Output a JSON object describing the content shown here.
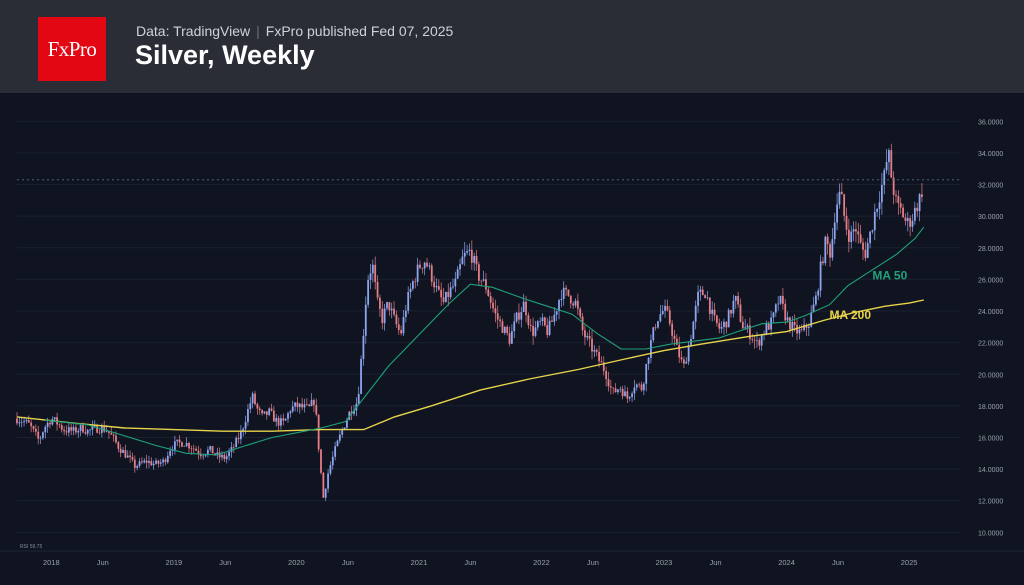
{
  "header": {
    "logo_text": "FxPro",
    "source": "Data: TradingView",
    "published": "FxPro published Fed 07, 2025",
    "title": "Silver, Weekly"
  },
  "colors": {
    "background": "#0f1420",
    "header": "#2a2d36",
    "logo": "#e30613",
    "up_candle": "#8ea5f0",
    "down_candle": "#e57e86",
    "ma50": "#1fa27a",
    "ma200": "#e8d44a"
  },
  "chart_data": {
    "type": "candlestick",
    "title": "Silver, Weekly",
    "y_ticks": [
      "10.0000",
      "12.0000",
      "14.0000",
      "16.0000",
      "18.0000",
      "20.0000",
      "22.0000",
      "24.0000",
      "26.0000",
      "28.0000",
      "30.0000",
      "32.0000",
      "34.0000",
      "36.0000"
    ],
    "ylim": [
      9.2,
      36.4
    ],
    "x_ticks": [
      {
        "label": "2018",
        "t": 2018.0
      },
      {
        "label": "Jun",
        "t": 2018.42
      },
      {
        "label": "2019",
        "t": 2019.0
      },
      {
        "label": "Jun",
        "t": 2019.42
      },
      {
        "label": "2020",
        "t": 2020.0
      },
      {
        "label": "Jun",
        "t": 2020.42
      },
      {
        "label": "2021",
        "t": 2021.0
      },
      {
        "label": "Jun",
        "t": 2021.42
      },
      {
        "label": "2022",
        "t": 2022.0
      },
      {
        "label": "Jun",
        "t": 2022.42
      },
      {
        "label": "2023",
        "t": 2023.0
      },
      {
        "label": "Jun",
        "t": 2023.42
      },
      {
        "label": "2024",
        "t": 2024.0
      },
      {
        "label": "Jun",
        "t": 2024.42
      },
      {
        "label": "2025",
        "t": 2025.0
      }
    ],
    "xlim": [
      2017.72,
      2025.35
    ],
    "last_price": 32.3,
    "indicator_label": "RSI 59.75",
    "price_path": [
      [
        2017.72,
        17.2
      ],
      [
        2017.78,
        17.0
      ],
      [
        2017.82,
        16.8
      ],
      [
        2017.86,
        16.3
      ],
      [
        2017.9,
        15.8
      ],
      [
        2017.94,
        16.6
      ],
      [
        2018.0,
        17.2
      ],
      [
        2018.05,
        16.9
      ],
      [
        2018.1,
        16.5
      ],
      [
        2018.18,
        16.4
      ],
      [
        2018.25,
        16.6
      ],
      [
        2018.3,
        16.4
      ],
      [
        2018.38,
        16.6
      ],
      [
        2018.45,
        16.5
      ],
      [
        2018.5,
        16.0
      ],
      [
        2018.55,
        15.4
      ],
      [
        2018.62,
        14.8
      ],
      [
        2018.68,
        14.2
      ],
      [
        2018.72,
        14.3
      ],
      [
        2018.78,
        14.5
      ],
      [
        2018.85,
        14.3
      ],
      [
        2018.92,
        14.5
      ],
      [
        2018.97,
        15.3
      ],
      [
        2019.02,
        15.6
      ],
      [
        2019.08,
        15.7
      ],
      [
        2019.15,
        15.4
      ],
      [
        2019.22,
        15.0
      ],
      [
        2019.3,
        15.2
      ],
      [
        2019.36,
        14.8
      ],
      [
        2019.42,
        14.7
      ],
      [
        2019.48,
        15.3
      ],
      [
        2019.55,
        16.3
      ],
      [
        2019.6,
        17.6
      ],
      [
        2019.64,
        18.6
      ],
      [
        2019.68,
        17.8
      ],
      [
        2019.72,
        17.3
      ],
      [
        2019.78,
        17.6
      ],
      [
        2019.84,
        17.0
      ],
      [
        2019.9,
        16.9
      ],
      [
        2019.95,
        17.8
      ],
      [
        2020.0,
        18.0
      ],
      [
        2020.05,
        17.9
      ],
      [
        2020.1,
        17.8
      ],
      [
        2020.15,
        18.4
      ],
      [
        2020.19,
        14.6
      ],
      [
        2020.22,
        12.2
      ],
      [
        2020.26,
        13.8
      ],
      [
        2020.32,
        15.3
      ],
      [
        2020.38,
        16.6
      ],
      [
        2020.44,
        17.7
      ],
      [
        2020.5,
        18.3
      ],
      [
        2020.54,
        22.0
      ],
      [
        2020.58,
        26.0
      ],
      [
        2020.62,
        27.0
      ],
      [
        2020.66,
        24.5
      ],
      [
        2020.7,
        23.5
      ],
      [
        2020.75,
        24.5
      ],
      [
        2020.8,
        23.4
      ],
      [
        2020.85,
        22.5
      ],
      [
        2020.9,
        24.5
      ],
      [
        2020.95,
        25.8
      ],
      [
        2021.0,
        26.8
      ],
      [
        2021.05,
        27.2
      ],
      [
        2021.1,
        26.3
      ],
      [
        2021.15,
        25.2
      ],
      [
        2021.2,
        24.5
      ],
      [
        2021.25,
        25.2
      ],
      [
        2021.3,
        25.8
      ],
      [
        2021.36,
        27.4
      ],
      [
        2021.42,
        27.8
      ],
      [
        2021.48,
        26.3
      ],
      [
        2021.55,
        25.5
      ],
      [
        2021.62,
        23.8
      ],
      [
        2021.68,
        23.0
      ],
      [
        2021.74,
        22.2
      ],
      [
        2021.8,
        23.6
      ],
      [
        2021.86,
        24.5
      ],
      [
        2021.92,
        22.6
      ],
      [
        2022.0,
        23.3
      ],
      [
        2022.05,
        22.7
      ],
      [
        2022.1,
        23.6
      ],
      [
        2022.16,
        25.2
      ],
      [
        2022.22,
        25.0
      ],
      [
        2022.28,
        24.5
      ],
      [
        2022.34,
        22.6
      ],
      [
        2022.4,
        21.8
      ],
      [
        2022.46,
        21.0
      ],
      [
        2022.52,
        20.2
      ],
      [
        2022.58,
        18.8
      ],
      [
        2022.64,
        19.2
      ],
      [
        2022.7,
        18.5
      ],
      [
        2022.76,
        19.4
      ],
      [
        2022.82,
        19.1
      ],
      [
        2022.88,
        21.6
      ],
      [
        2022.94,
        23.5
      ],
      [
        2023.0,
        24.1
      ],
      [
        2023.04,
        23.5
      ],
      [
        2023.1,
        21.7
      ],
      [
        2023.16,
        20.4
      ],
      [
        2023.22,
        22.5
      ],
      [
        2023.28,
        25.0
      ],
      [
        2023.34,
        25.2
      ],
      [
        2023.4,
        23.5
      ],
      [
        2023.46,
        22.8
      ],
      [
        2023.52,
        23.5
      ],
      [
        2023.58,
        24.8
      ],
      [
        2023.64,
        23.1
      ],
      [
        2023.7,
        22.6
      ],
      [
        2023.76,
        21.9
      ],
      [
        2023.82,
        22.8
      ],
      [
        2023.88,
        23.3
      ],
      [
        2023.94,
        24.8
      ],
      [
        2024.0,
        23.5
      ],
      [
        2024.06,
        22.8
      ],
      [
        2024.12,
        22.6
      ],
      [
        2024.18,
        23.2
      ],
      [
        2024.24,
        24.8
      ],
      [
        2024.28,
        26.8
      ],
      [
        2024.32,
        28.4
      ],
      [
        2024.36,
        27.6
      ],
      [
        2024.4,
        30.6
      ],
      [
        2024.44,
        31.5
      ],
      [
        2024.48,
        29.5
      ],
      [
        2024.52,
        28.6
      ],
      [
        2024.56,
        29.4
      ],
      [
        2024.6,
        28.2
      ],
      [
        2024.64,
        27.6
      ],
      [
        2024.68,
        28.8
      ],
      [
        2024.72,
        30.2
      ],
      [
        2024.76,
        31.4
      ],
      [
        2024.8,
        32.6
      ],
      [
        2024.83,
        34.1
      ],
      [
        2024.86,
        32.2
      ],
      [
        2024.9,
        30.6
      ],
      [
        2024.94,
        30.3
      ],
      [
        2024.98,
        29.5
      ],
      [
        2025.02,
        29.8
      ],
      [
        2025.06,
        30.6
      ],
      [
        2025.1,
        31.4
      ],
      [
        2025.12,
        32.3
      ]
    ],
    "ma50_path": [
      [
        2017.95,
        17.1
      ],
      [
        2018.3,
        16.8
      ],
      [
        2018.6,
        16.1
      ],
      [
        2018.85,
        15.5
      ],
      [
        2019.1,
        15.0
      ],
      [
        2019.35,
        14.9
      ],
      [
        2019.55,
        15.4
      ],
      [
        2019.8,
        16.0
      ],
      [
        2020.0,
        16.3
      ],
      [
        2020.2,
        16.6
      ],
      [
        2020.4,
        17.0
      ],
      [
        2020.55,
        18.5
      ],
      [
        2020.75,
        20.5
      ],
      [
        2021.0,
        22.5
      ],
      [
        2021.25,
        24.5
      ],
      [
        2021.42,
        25.7
      ],
      [
        2021.6,
        25.5
      ],
      [
        2021.85,
        24.8
      ],
      [
        2022.05,
        24.3
      ],
      [
        2022.25,
        23.8
      ],
      [
        2022.45,
        22.6
      ],
      [
        2022.65,
        21.6
      ],
      [
        2022.85,
        21.6
      ],
      [
        2023.05,
        21.9
      ],
      [
        2023.25,
        22.1
      ],
      [
        2023.45,
        22.3
      ],
      [
        2023.6,
        22.7
      ],
      [
        2023.8,
        23.2
      ],
      [
        2024.0,
        23.3
      ],
      [
        2024.15,
        23.7
      ],
      [
        2024.35,
        24.4
      ],
      [
        2024.5,
        25.6
      ],
      [
        2024.7,
        26.6
      ],
      [
        2024.9,
        27.6
      ],
      [
        2025.05,
        28.6
      ],
      [
        2025.12,
        29.3
      ]
    ],
    "ma200_path": [
      [
        2017.72,
        17.3
      ],
      [
        2018.2,
        16.9
      ],
      [
        2018.6,
        16.6
      ],
      [
        2019.0,
        16.5
      ],
      [
        2019.4,
        16.4
      ],
      [
        2019.8,
        16.4
      ],
      [
        2020.2,
        16.5
      ],
      [
        2020.55,
        16.5
      ],
      [
        2020.8,
        17.3
      ],
      [
        2021.1,
        18.0
      ],
      [
        2021.5,
        19.0
      ],
      [
        2021.9,
        19.7
      ],
      [
        2022.3,
        20.3
      ],
      [
        2022.7,
        21.0
      ],
      [
        2023.0,
        21.5
      ],
      [
        2023.3,
        21.9
      ],
      [
        2023.7,
        22.4
      ],
      [
        2024.0,
        22.7
      ],
      [
        2024.3,
        23.4
      ],
      [
        2024.55,
        23.9
      ],
      [
        2024.8,
        24.3
      ],
      [
        2025.0,
        24.5
      ],
      [
        2025.12,
        24.7
      ]
    ],
    "annotations": [
      {
        "text": "MA 50",
        "t": 2024.7,
        "y": 26.0,
        "color": "#1fa27a"
      },
      {
        "text": "MA 200",
        "t": 2024.35,
        "y": 23.5,
        "color": "#e8d44a"
      }
    ]
  }
}
